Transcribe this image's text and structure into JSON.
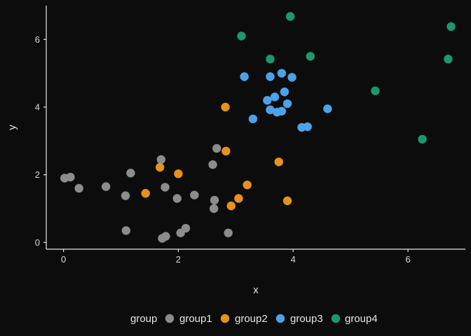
{
  "chart_data": {
    "type": "scatter",
    "xlabel": "x",
    "ylabel": "y",
    "xlim": [
      -0.3,
      7.0
    ],
    "ylim": [
      -0.2,
      7.0
    ],
    "xticks": [
      0,
      2,
      4,
      6
    ],
    "yticks": [
      0,
      2,
      4,
      6
    ],
    "grid": false,
    "legend_position": "bottom",
    "legend_title": "group",
    "series": [
      {
        "name": "group1",
        "color": "#8c8c8c",
        "points": [
          [
            0.02,
            1.9
          ],
          [
            0.12,
            1.93
          ],
          [
            0.27,
            1.6
          ],
          [
            0.74,
            1.65
          ],
          [
            1.08,
            1.38
          ],
          [
            1.17,
            2.05
          ],
          [
            1.09,
            0.35
          ],
          [
            1.7,
            2.45
          ],
          [
            1.77,
            1.63
          ],
          [
            1.98,
            1.3
          ],
          [
            2.28,
            1.4
          ],
          [
            1.72,
            0.12
          ],
          [
            1.78,
            0.18
          ],
          [
            2.04,
            0.28
          ],
          [
            2.13,
            0.42
          ],
          [
            2.6,
            2.3
          ],
          [
            2.67,
            2.78
          ],
          [
            2.63,
            1.25
          ],
          [
            2.62,
            1.0
          ],
          [
            2.87,
            0.28
          ]
        ]
      },
      {
        "name": "group2",
        "color": "#e8921a",
        "points": [
          [
            1.43,
            1.45
          ],
          [
            1.68,
            2.22
          ],
          [
            2.0,
            2.03
          ],
          [
            2.83,
            2.7
          ],
          [
            2.82,
            4.0
          ],
          [
            2.92,
            1.08
          ],
          [
            3.05,
            1.3
          ],
          [
            3.2,
            1.7
          ],
          [
            3.75,
            2.38
          ],
          [
            3.9,
            1.23
          ]
        ]
      },
      {
        "name": "group3",
        "color": "#4aa3e8",
        "points": [
          [
            3.15,
            4.9
          ],
          [
            3.3,
            3.65
          ],
          [
            3.55,
            4.2
          ],
          [
            3.6,
            4.9
          ],
          [
            3.6,
            3.92
          ],
          [
            3.68,
            4.3
          ],
          [
            3.72,
            3.85
          ],
          [
            3.8,
            3.88
          ],
          [
            3.8,
            5.0
          ],
          [
            3.85,
            4.45
          ],
          [
            3.9,
            4.1
          ],
          [
            3.98,
            4.88
          ],
          [
            4.15,
            3.4
          ],
          [
            4.25,
            3.42
          ],
          [
            4.6,
            3.95
          ]
        ]
      },
      {
        "name": "group4",
        "color": "#199a6a",
        "points": [
          [
            3.1,
            6.1
          ],
          [
            3.6,
            5.42
          ],
          [
            3.95,
            6.68
          ],
          [
            4.3,
            5.5
          ],
          [
            5.43,
            4.48
          ],
          [
            6.25,
            3.05
          ],
          [
            6.7,
            5.42
          ],
          [
            6.75,
            6.38
          ]
        ]
      }
    ]
  }
}
